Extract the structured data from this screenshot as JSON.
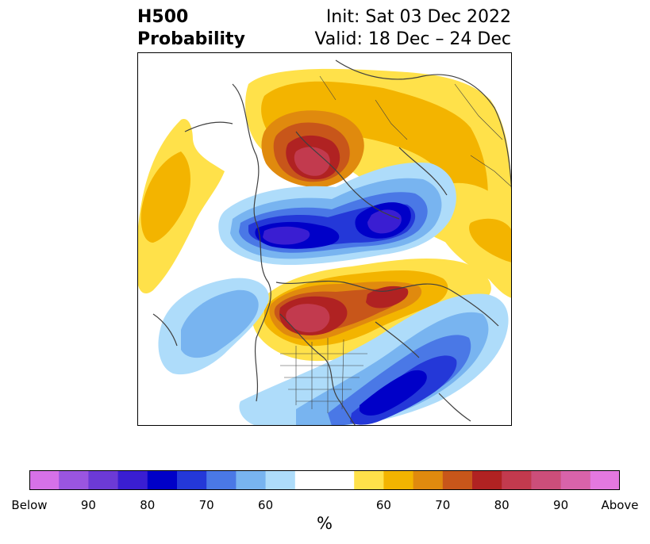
{
  "title": {
    "left_line1": "H500",
    "left_line2": "Probability",
    "right_line1": "Init: Sat 03 Dec 2022",
    "right_line2": "Valid: 18 Dec – 24 Dec"
  },
  "colorbar": {
    "unit": "%",
    "colors": [
      "#d671e8",
      "#9a55e0",
      "#6c3ad6",
      "#3a1ed2",
      "#0000c8",
      "#2438d8",
      "#4a78e6",
      "#78b4f0",
      "#aedcfa",
      "#ffffff",
      "#ffffff",
      "#ffe14a",
      "#f3b400",
      "#e08a0e",
      "#c8561a",
      "#b02222",
      "#c23a4e",
      "#cc4e7a",
      "#d863aa",
      "#e478e0"
    ],
    "ticks": [
      "Below",
      "90",
      "80",
      "70",
      "60",
      "60",
      "70",
      "80",
      "90",
      "Above"
    ]
  },
  "colors": {
    "below_strong": "#3a1ed2",
    "below_mid": "#0000c8",
    "below_light": "#78b4f0",
    "above_light": "#ffe14a",
    "above_mid": "#f3b400",
    "above_strong": "#b02222",
    "border_lines": "#404040"
  },
  "map": {
    "projection": "north-polar-stereographic",
    "variable": "500 hPa geopotential height anomaly probability"
  }
}
